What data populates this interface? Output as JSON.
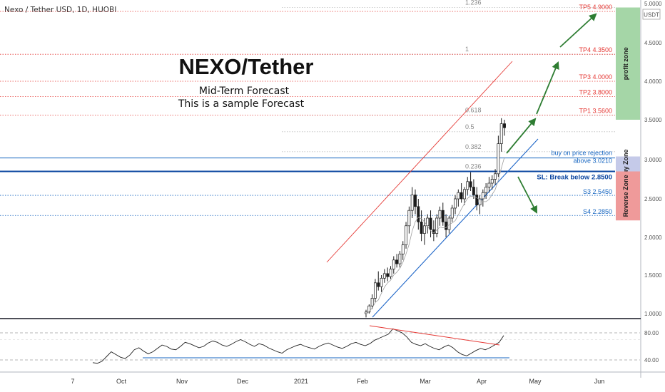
{
  "header": {
    "symbol_label": "Nexo / Tether USD, 1D, HUOBI"
  },
  "price_scale": {
    "unit_badge": "USDT"
  },
  "title": {
    "main": "NEXO/Tether",
    "line1": "Mid-Term Forecast",
    "line2": "This is a sample Forecast"
  },
  "colors": {
    "red": "#e53935",
    "blue": "#1565c0",
    "green": "#2e7d32",
    "profit_zone": "#a5d6a7",
    "buy_zone": "#c5cae9",
    "reverse_zone": "#ef9a9a"
  },
  "chart_data": [
    {
      "type": "candlestick",
      "ylim": [
        1.0,
        5.0
      ],
      "y_scale": "log",
      "y_ticks": [
        "1.0000",
        "1.5000",
        "2.0000",
        "2.5000",
        "3.0000",
        "3.5000",
        "4.0000",
        "4.5000",
        "5.0000"
      ],
      "x_ticks": [
        "7",
        "Oct",
        "Nov",
        "Dec",
        "2021",
        "Feb",
        "Mar",
        "Apr",
        "May",
        "Jun"
      ],
      "fib_levels": [
        {
          "label": "1.236",
          "value": 4.95
        },
        {
          "label": "1",
          "value": 4.35
        },
        {
          "label": "0.618",
          "value": 3.56
        },
        {
          "label": "0.5",
          "value": 3.35
        },
        {
          "label": "0.382",
          "value": 3.1
        },
        {
          "label": "0.236",
          "value": 2.85
        }
      ],
      "targets": [
        {
          "label": "TP5 4.9000",
          "value": 4.9
        },
        {
          "label": "TP4 4.3500",
          "value": 4.35
        },
        {
          "label": "TP3 4.0000",
          "value": 4.0
        },
        {
          "label": "TP2 3.8000",
          "value": 3.8
        },
        {
          "label": "TP1 3.5600",
          "value": 3.56
        }
      ],
      "supports": [
        {
          "label": "S3 2.5450",
          "value": 2.545
        },
        {
          "label": "S4 2.2850",
          "value": 2.285
        }
      ],
      "key_levels": [
        {
          "label_top": "buy on price rejection",
          "label_bottom": "above 3.0210",
          "value": 3.021
        },
        {
          "label": "SL: Break below 2.8500",
          "value": 2.85
        }
      ],
      "zones": [
        {
          "label": "profit zone",
          "from": 3.5,
          "to": 4.95
        },
        {
          "label": "Buy Zone",
          "from": 2.85,
          "to": 3.04
        },
        {
          "label": "Reverse Zone",
          "from": 2.22,
          "to": 2.85
        }
      ],
      "candles": [
        [
          1.0,
          1.05,
          0.95,
          1.02
        ],
        [
          1.02,
          1.12,
          1.0,
          1.1
        ],
        [
          1.1,
          1.25,
          1.06,
          1.2
        ],
        [
          1.2,
          1.45,
          1.15,
          1.4
        ],
        [
          1.4,
          1.55,
          1.3,
          1.35
        ],
        [
          1.35,
          1.5,
          1.28,
          1.46
        ],
        [
          1.46,
          1.58,
          1.4,
          1.52
        ],
        [
          1.52,
          1.6,
          1.42,
          1.48
        ],
        [
          1.48,
          1.62,
          1.45,
          1.58
        ],
        [
          1.58,
          1.75,
          1.52,
          1.7
        ],
        [
          1.7,
          1.78,
          1.6,
          1.65
        ],
        [
          1.65,
          1.82,
          1.6,
          1.78
        ],
        [
          1.78,
          1.95,
          1.7,
          1.9
        ],
        [
          1.9,
          2.2,
          1.85,
          2.15
        ],
        [
          2.15,
          2.4,
          2.05,
          2.35
        ],
        [
          2.35,
          2.65,
          2.25,
          2.55
        ],
        [
          2.55,
          2.62,
          2.3,
          2.4
        ],
        [
          2.4,
          2.5,
          2.1,
          2.2
        ],
        [
          2.2,
          2.35,
          1.95,
          2.05
        ],
        [
          2.05,
          2.25,
          1.9,
          2.15
        ],
        [
          2.15,
          2.3,
          2.05,
          2.25
        ],
        [
          2.25,
          2.35,
          2.0,
          2.1
        ],
        [
          2.1,
          2.22,
          1.95,
          2.05
        ],
        [
          2.05,
          2.3,
          2.0,
          2.25
        ],
        [
          2.25,
          2.4,
          2.15,
          2.35
        ],
        [
          2.35,
          2.45,
          2.15,
          2.2
        ],
        [
          2.2,
          2.3,
          2.0,
          2.1
        ],
        [
          2.1,
          2.28,
          2.05,
          2.25
        ],
        [
          2.25,
          2.42,
          2.2,
          2.38
        ],
        [
          2.38,
          2.55,
          2.3,
          2.5
        ],
        [
          2.5,
          2.62,
          2.4,
          2.58
        ],
        [
          2.58,
          2.7,
          2.45,
          2.5
        ],
        [
          2.5,
          2.65,
          2.42,
          2.62
        ],
        [
          2.62,
          2.78,
          2.55,
          2.72
        ],
        [
          2.72,
          2.84,
          2.6,
          2.65
        ],
        [
          2.65,
          2.75,
          2.5,
          2.55
        ],
        [
          2.55,
          2.65,
          2.35,
          2.42
        ],
        [
          2.42,
          2.55,
          2.3,
          2.5
        ],
        [
          2.5,
          2.62,
          2.4,
          2.58
        ],
        [
          2.58,
          2.7,
          2.5,
          2.65
        ],
        [
          2.65,
          2.78,
          2.58,
          2.7
        ],
        [
          2.7,
          2.8,
          2.62,
          2.75
        ],
        [
          2.75,
          2.88,
          2.68,
          2.82
        ],
        [
          2.82,
          3.3,
          2.78,
          3.2
        ],
        [
          3.2,
          3.52,
          3.1,
          3.45
        ],
        [
          3.45,
          3.5,
          3.3,
          3.4
        ]
      ],
      "trendlines": [
        {
          "name": "channel-top",
          "color": "red"
        },
        {
          "name": "ascending-support",
          "color": "blue"
        }
      ]
    },
    {
      "type": "line",
      "name": "oscillator",
      "ylim": [
        30,
        90
      ],
      "y_ticks": [
        "80.00",
        "40.00"
      ],
      "values": [
        36,
        35,
        38,
        45,
        52,
        48,
        44,
        42,
        47,
        55,
        58,
        53,
        49,
        52,
        57,
        62,
        60,
        56,
        55,
        60,
        66,
        64,
        61,
        58,
        60,
        65,
        68,
        66,
        62,
        60,
        63,
        67,
        70,
        67,
        63,
        60,
        64,
        62,
        58,
        55,
        52,
        50,
        55,
        58,
        61,
        63,
        60,
        58,
        56,
        60,
        63,
        65,
        62,
        59,
        57,
        60,
        64,
        66,
        63,
        61,
        64,
        69,
        72,
        75,
        78,
        86,
        83,
        80,
        74,
        66,
        63,
        61,
        64,
        60,
        57,
        55,
        59,
        62,
        58,
        52,
        48,
        46,
        50,
        54,
        57,
        55,
        58,
        62,
        66,
        76
      ]
    }
  ]
}
